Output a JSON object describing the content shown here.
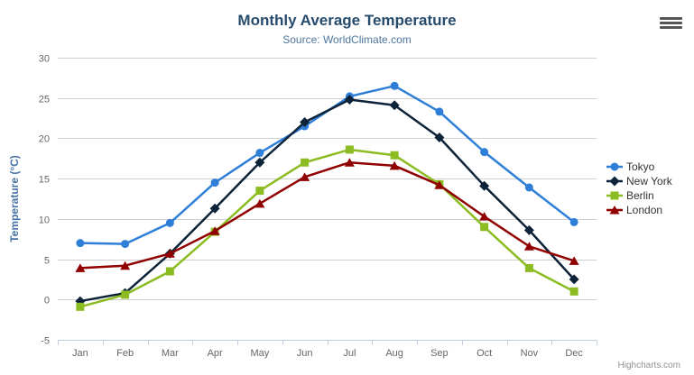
{
  "header": {
    "title": "Monthly Average Temperature",
    "subtitle": "Source: WorldClimate.com"
  },
  "credits": {
    "label": "Highcharts.com"
  },
  "theme": {
    "background": "#ffffff",
    "title_color": "#274b6d",
    "subtitle_color": "#4d759e",
    "axis_label_color": "#666666",
    "axis_title_color": "#4572a7",
    "grid_color": "#d0d0d0",
    "axis_line_color": "#c0d0e0",
    "legend_text_color": "#333333",
    "credits_color": "#909090",
    "menu_icon_color": "#555555"
  },
  "chart_data": {
    "type": "line",
    "title": "Monthly Average Temperature",
    "subtitle": "Source: WorldClimate.com",
    "xlabel": "",
    "ylabel": "Temperature (°C)",
    "ylim": [
      -5,
      30
    ],
    "y_ticks": [
      -5,
      0,
      5,
      10,
      15,
      20,
      25,
      30
    ],
    "grid": true,
    "legend_position": "right",
    "categories": [
      "Jan",
      "Feb",
      "Mar",
      "Apr",
      "May",
      "Jun",
      "Jul",
      "Aug",
      "Sep",
      "Oct",
      "Nov",
      "Dec"
    ],
    "series": [
      {
        "name": "Tokyo",
        "color": "#2f7ed8",
        "marker": "circle",
        "values": [
          7.0,
          6.9,
          9.5,
          14.5,
          18.2,
          21.5,
          25.2,
          26.5,
          23.3,
          18.3,
          13.9,
          9.6
        ]
      },
      {
        "name": "New York",
        "color": "#0d233a",
        "marker": "diamond",
        "values": [
          -0.2,
          0.8,
          5.7,
          11.3,
          17.0,
          22.0,
          24.8,
          24.1,
          20.1,
          14.1,
          8.6,
          2.5
        ]
      },
      {
        "name": "Berlin",
        "color": "#8bbc21",
        "marker": "square",
        "values": [
          -0.9,
          0.6,
          3.5,
          8.4,
          13.5,
          17.0,
          18.6,
          17.9,
          14.3,
          9.0,
          3.9,
          1.0
        ]
      },
      {
        "name": "London",
        "color": "#910000",
        "marker": "triangle",
        "values": [
          3.9,
          4.2,
          5.7,
          8.5,
          11.9,
          15.2,
          17.0,
          16.6,
          14.2,
          10.3,
          6.6,
          4.8
        ]
      }
    ]
  }
}
